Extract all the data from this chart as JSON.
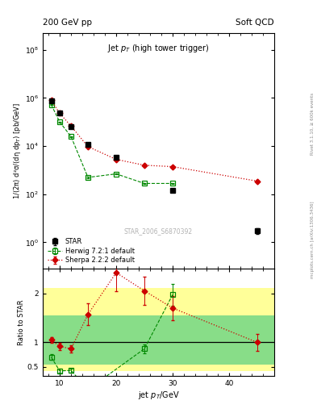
{
  "title_top_left": "200 GeV pp",
  "title_top_right": "Soft QCD",
  "plot_title": "Jet $p_T$ (high tower trigger)",
  "ylabel_main": "1/(2π) d²σ/(dη dp$_T$) [pb/GeV]",
  "ylabel_ratio": "Ratio to STAR",
  "xlabel": "jet $p_T$/GeV",
  "right_label1": "Rivet 3.1.10, ≥ 600k events",
  "right_label2": "mcplots.cern.ch [arXiv:1306.3436]",
  "watermark": "STAR_2006_S6870392",
  "star_x": [
    8.5,
    10,
    12,
    15,
    20,
    30,
    45
  ],
  "star_y": [
    750000.0,
    240000.0,
    65000.0,
    12000.0,
    3500,
    150,
    3
  ],
  "star_yerr": [
    80000.0,
    25000.0,
    7000.0,
    1500.0,
    400,
    25,
    0.8
  ],
  "herwig_x": [
    8.5,
    10,
    12,
    15,
    20,
    25,
    30
  ],
  "herwig_y": [
    520000.0,
    100000.0,
    25000.0,
    500,
    700,
    280,
    280
  ],
  "herwig_yerr": [
    20000.0,
    4000.0,
    1000.0,
    30,
    40,
    15,
    15
  ],
  "sherpa_x": [
    8.5,
    10,
    12,
    15,
    20,
    25,
    30,
    45
  ],
  "sherpa_y": [
    800000.0,
    230000.0,
    68000.0,
    9500,
    2800,
    1600,
    1400,
    350
  ],
  "sherpa_yerr": [
    30000.0,
    8000.0,
    2500.0,
    350,
    100,
    60,
    55,
    20
  ],
  "ratio_herwig_x": [
    8.5,
    10,
    12,
    15,
    25,
    30
  ],
  "ratio_herwig_y": [
    0.7,
    0.42,
    0.43,
    0.042,
    0.87,
    1.97
  ],
  "ratio_herwig_yerr": [
    0.06,
    0.04,
    0.04,
    0.005,
    0.09,
    0.22
  ],
  "ratio_sherpa_x": [
    8.5,
    10,
    12,
    15,
    20,
    25,
    30,
    45
  ],
  "ratio_sherpa_y": [
    1.05,
    0.92,
    0.87,
    1.57,
    2.42,
    2.05,
    1.7,
    1.0
  ],
  "ratio_sherpa_yerr": [
    0.06,
    0.07,
    0.07,
    0.22,
    0.38,
    0.28,
    0.25,
    0.18
  ],
  "band_yellow_lo": 0.42,
  "band_yellow_hi": 2.1,
  "band_green_lo": 0.55,
  "band_green_hi": 1.55,
  "xlim": [
    7,
    48
  ],
  "ylim_main": [
    0.08,
    500000000.0
  ],
  "ylim_ratio": [
    0.32,
    2.5
  ],
  "star_color": "#000000",
  "herwig_color": "#008800",
  "sherpa_color": "#cc0000",
  "yellow_band_color": "#ffff99",
  "green_band_color": "#88dd88"
}
